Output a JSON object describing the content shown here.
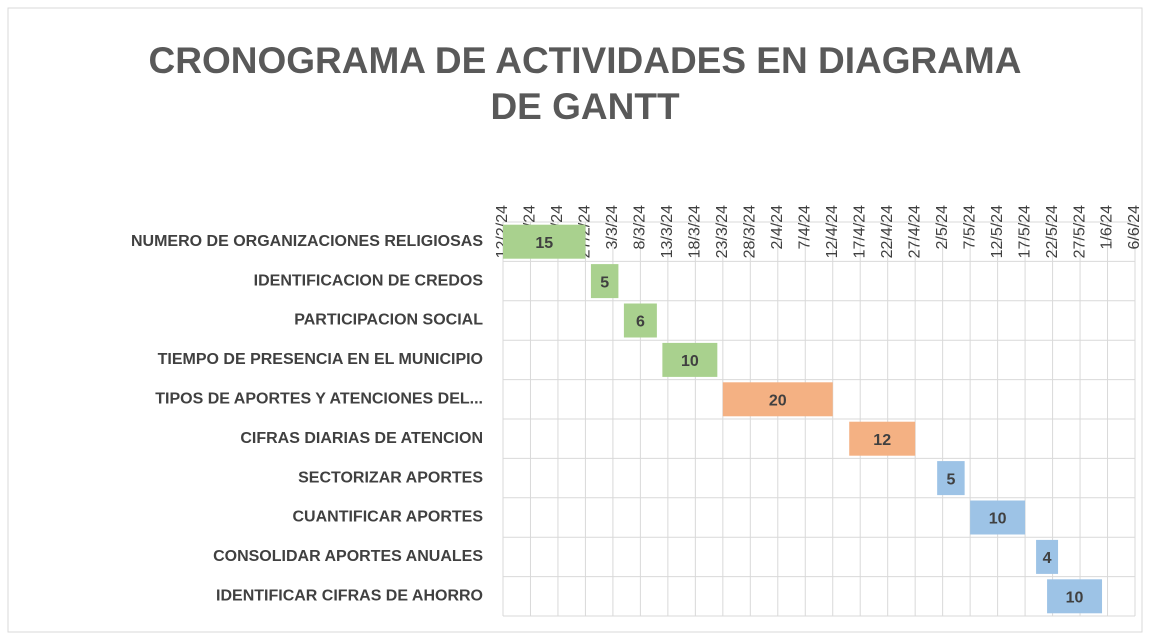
{
  "chart_data": {
    "type": "gantt",
    "title": "CRONOGRAMA DE ACTIVIDADES EN DIAGRAMA DE GANTT",
    "categories": [
      "NUMERO DE ORGANIZACIONES RELIGIOSAS",
      "IDENTIFICACION DE CREDOS",
      "PARTICIPACION SOCIAL",
      "TIEMPO DE PRESENCIA EN EL MUNICIPIO",
      "TIPOS DE APORTES Y ATENCIONES DEL...",
      "CIFRAS DIARIAS DE ATENCION",
      "SECTORIZAR APORTES",
      "CUANTIFICAR APORTES",
      "CONSOLIDAR APORTES ANUALES",
      "IDENTIFICAR CIFRAS DE AHORRO"
    ],
    "start": [
      "2024-02-12",
      "2024-02-28",
      "2024-03-05",
      "2024-03-12",
      "2024-03-23",
      "2024-04-15",
      "2024-05-01",
      "2024-05-07",
      "2024-05-19",
      "2024-05-21"
    ],
    "values": [
      15,
      5,
      6,
      10,
      20,
      12,
      5,
      10,
      4,
      10
    ],
    "colors": [
      "#a9d18e",
      "#a9d18e",
      "#a9d18e",
      "#a9d18e",
      "#f4b183",
      "#f4b183",
      "#9dc3e6",
      "#9dc3e6",
      "#9dc3e6",
      "#9dc3e6"
    ],
    "xlim": [
      "2024-02-12",
      "2024-06-06"
    ],
    "xticks": [
      {
        "value": "2024-02-12",
        "label": "12/2/24"
      },
      {
        "value": "2024-02-17",
        "label": "17/2/24"
      },
      {
        "value": "2024-02-22",
        "label": "22/2/24"
      },
      {
        "value": "2024-02-27",
        "label": "27/2/24"
      },
      {
        "value": "2024-03-03",
        "label": "3/3/24"
      },
      {
        "value": "2024-03-08",
        "label": "8/3/24"
      },
      {
        "value": "2024-03-13",
        "label": "13/3/24"
      },
      {
        "value": "2024-03-18",
        "label": "18/3/24"
      },
      {
        "value": "2024-03-23",
        "label": "23/3/24"
      },
      {
        "value": "2024-03-28",
        "label": "28/3/24"
      },
      {
        "value": "2024-04-02",
        "label": "2/4/24"
      },
      {
        "value": "2024-04-07",
        "label": "7/4/24"
      },
      {
        "value": "2024-04-12",
        "label": "12/4/24"
      },
      {
        "value": "2024-04-17",
        "label": "17/4/24"
      },
      {
        "value": "2024-04-22",
        "label": "22/4/24"
      },
      {
        "value": "2024-04-27",
        "label": "27/4/24"
      },
      {
        "value": "2024-05-02",
        "label": "2/5/24"
      },
      {
        "value": "2024-05-07",
        "label": "7/5/24"
      },
      {
        "value": "2024-05-12",
        "label": "12/5/24"
      },
      {
        "value": "2024-05-17",
        "label": "17/5/24"
      },
      {
        "value": "2024-05-22",
        "label": "22/5/24"
      },
      {
        "value": "2024-05-27",
        "label": "27/5/24"
      },
      {
        "value": "2024-06-01",
        "label": "1/6/24"
      },
      {
        "value": "2024-06-06",
        "label": "6/6/24"
      }
    ],
    "grid": true
  }
}
